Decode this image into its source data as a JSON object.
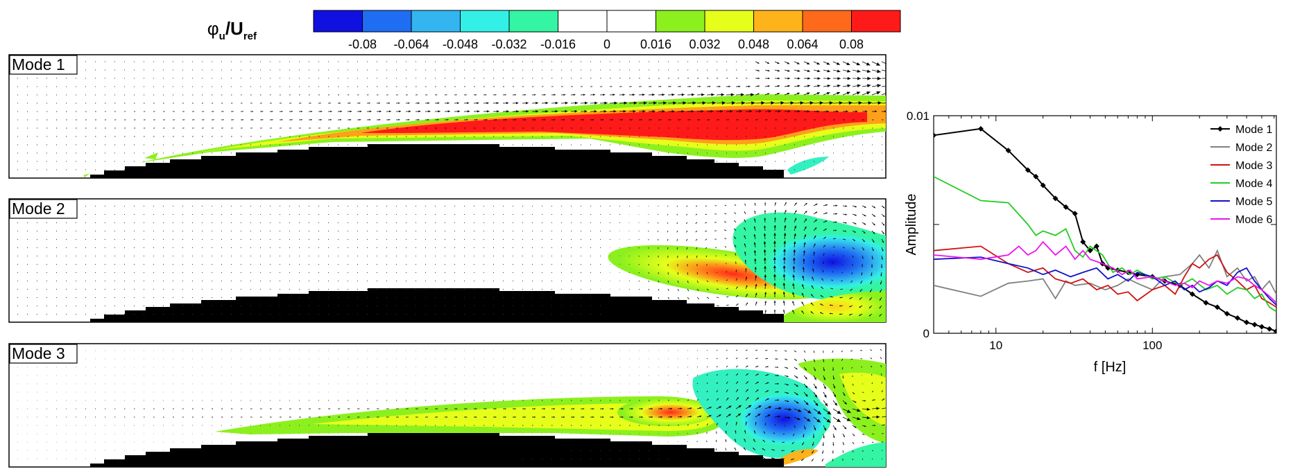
{
  "colorbar": {
    "label_main": "φ",
    "label_sub1": "u",
    "label_mid": "/U",
    "label_sub2": "ref",
    "colors": [
      "#1010e0",
      "#1f6df2",
      "#33b5f0",
      "#33f0e6",
      "#33f5a3",
      "#ffffff",
      "#ffffff",
      "#8cf01f",
      "#e6ff1a",
      "#ffb31a",
      "#ff6a1a",
      "#ff1a1a"
    ],
    "ticks": [
      "-0.08",
      "-0.064",
      "-0.048",
      "-0.032",
      "-0.016",
      "0",
      "0.016",
      "0.032",
      "0.048",
      "0.064",
      "0.08"
    ]
  },
  "modes": [
    {
      "label": "Mode 1"
    },
    {
      "label": "Mode 2"
    },
    {
      "label": "Mode 3"
    }
  ],
  "chart_data": {
    "type": "line",
    "xlabel": "f [Hz]",
    "ylabel": "Amplitude",
    "x_scale": "log",
    "xlim": [
      4,
      620
    ],
    "ylim": [
      0,
      0.01
    ],
    "xticks": [
      {
        "value": 10,
        "label": "10"
      },
      {
        "value": 100,
        "label": "100"
      }
    ],
    "yticks": [
      {
        "value": 0,
        "label": "0"
      },
      {
        "value": 0.01,
        "label": "0.01"
      }
    ],
    "legend_position": "top-right",
    "series": [
      {
        "name": "Mode 1",
        "color": "#000000",
        "marker": "diamond",
        "points": [
          [
            4,
            0.0091
          ],
          [
            8,
            0.0094
          ],
          [
            12,
            0.0084
          ],
          [
            16,
            0.0075
          ],
          [
            18,
            0.0072
          ],
          [
            20,
            0.0068
          ],
          [
            24,
            0.0062
          ],
          [
            28,
            0.0058
          ],
          [
            32,
            0.0055
          ],
          [
            36,
            0.0042
          ],
          [
            40,
            0.0038
          ],
          [
            44,
            0.004
          ],
          [
            48,
            0.0032
          ],
          [
            52,
            0.003
          ],
          [
            60,
            0.0029
          ],
          [
            70,
            0.0028
          ],
          [
            80,
            0.0027
          ],
          [
            100,
            0.0026
          ],
          [
            120,
            0.0024
          ],
          [
            150,
            0.0022
          ],
          [
            180,
            0.0018
          ],
          [
            220,
            0.0014
          ],
          [
            260,
            0.0012
          ],
          [
            300,
            0.0009
          ],
          [
            350,
            0.0007
          ],
          [
            400,
            0.0005
          ],
          [
            450,
            0.0004
          ],
          [
            500,
            0.0003
          ],
          [
            560,
            0.0002
          ],
          [
            620,
            0.0001
          ]
        ]
      },
      {
        "name": "Mode 2",
        "color": "#808080",
        "marker": "none",
        "points": [
          [
            4,
            0.0022
          ],
          [
            8,
            0.0017
          ],
          [
            12,
            0.0023
          ],
          [
            16,
            0.0024
          ],
          [
            20,
            0.0025
          ],
          [
            24,
            0.0016
          ],
          [
            28,
            0.0024
          ],
          [
            32,
            0.0022
          ],
          [
            40,
            0.0023
          ],
          [
            50,
            0.002
          ],
          [
            60,
            0.0022
          ],
          [
            70,
            0.0025
          ],
          [
            80,
            0.0023
          ],
          [
            100,
            0.002
          ],
          [
            120,
            0.0026
          ],
          [
            150,
            0.0027
          ],
          [
            180,
            0.0032
          ],
          [
            200,
            0.0036
          ],
          [
            230,
            0.003
          ],
          [
            260,
            0.0038
          ],
          [
            300,
            0.0026
          ],
          [
            350,
            0.003
          ],
          [
            400,
            0.0024
          ],
          [
            450,
            0.0026
          ],
          [
            500,
            0.002
          ],
          [
            560,
            0.0024
          ],
          [
            620,
            0.0018
          ]
        ]
      },
      {
        "name": "Mode 3",
        "color": "#d01010",
        "marker": "none",
        "points": [
          [
            4,
            0.0038
          ],
          [
            8,
            0.004
          ],
          [
            12,
            0.0032
          ],
          [
            16,
            0.0028
          ],
          [
            20,
            0.003
          ],
          [
            24,
            0.0025
          ],
          [
            30,
            0.0023
          ],
          [
            36,
            0.0025
          ],
          [
            44,
            0.002
          ],
          [
            52,
            0.0022
          ],
          [
            60,
            0.0018
          ],
          [
            70,
            0.0019
          ],
          [
            80,
            0.0015
          ],
          [
            100,
            0.002
          ],
          [
            120,
            0.0022
          ],
          [
            140,
            0.0018
          ],
          [
            160,
            0.0026
          ],
          [
            180,
            0.0032
          ],
          [
            200,
            0.003
          ],
          [
            230,
            0.0034
          ],
          [
            260,
            0.0036
          ],
          [
            300,
            0.0028
          ],
          [
            350,
            0.0024
          ],
          [
            400,
            0.002
          ],
          [
            450,
            0.0022
          ],
          [
            500,
            0.0016
          ],
          [
            560,
            0.0014
          ],
          [
            620,
            0.0012
          ]
        ]
      },
      {
        "name": "Mode 4",
        "color": "#22cc22",
        "marker": "none",
        "points": [
          [
            4,
            0.0072
          ],
          [
            8,
            0.0061
          ],
          [
            12,
            0.006
          ],
          [
            16,
            0.005
          ],
          [
            18,
            0.0045
          ],
          [
            20,
            0.0047
          ],
          [
            24,
            0.0045
          ],
          [
            28,
            0.0048
          ],
          [
            32,
            0.0038
          ],
          [
            36,
            0.0035
          ],
          [
            40,
            0.004
          ],
          [
            48,
            0.0036
          ],
          [
            56,
            0.0028
          ],
          [
            64,
            0.003
          ],
          [
            72,
            0.0027
          ],
          [
            80,
            0.0029
          ],
          [
            100,
            0.0025
          ],
          [
            120,
            0.0026
          ],
          [
            150,
            0.0022
          ],
          [
            180,
            0.0025
          ],
          [
            220,
            0.002
          ],
          [
            260,
            0.0022
          ],
          [
            300,
            0.0018
          ],
          [
            350,
            0.0021
          ],
          [
            400,
            0.002
          ],
          [
            450,
            0.0016
          ],
          [
            500,
            0.0018
          ],
          [
            560,
            0.0012
          ],
          [
            620,
            0.001
          ]
        ]
      },
      {
        "name": "Mode 5",
        "color": "#1010cc",
        "marker": "none",
        "points": [
          [
            4,
            0.0034
          ],
          [
            8,
            0.0035
          ],
          [
            12,
            0.0032
          ],
          [
            16,
            0.003
          ],
          [
            20,
            0.0027
          ],
          [
            24,
            0.0029
          ],
          [
            30,
            0.0026
          ],
          [
            36,
            0.0028
          ],
          [
            44,
            0.003
          ],
          [
            52,
            0.0025
          ],
          [
            60,
            0.0027
          ],
          [
            70,
            0.0024
          ],
          [
            80,
            0.0028
          ],
          [
            100,
            0.0026
          ],
          [
            120,
            0.0022
          ],
          [
            140,
            0.0024
          ],
          [
            160,
            0.002
          ],
          [
            180,
            0.0022
          ],
          [
            200,
            0.0019
          ],
          [
            230,
            0.0021
          ],
          [
            260,
            0.0024
          ],
          [
            300,
            0.0022
          ],
          [
            350,
            0.0028
          ],
          [
            400,
            0.003
          ],
          [
            450,
            0.0024
          ],
          [
            500,
            0.002
          ],
          [
            560,
            0.0016
          ],
          [
            620,
            0.0013
          ]
        ]
      },
      {
        "name": "Mode 6",
        "color": "#ee10ee",
        "marker": "none",
        "points": [
          [
            4,
            0.0036
          ],
          [
            8,
            0.0034
          ],
          [
            12,
            0.0036
          ],
          [
            14,
            0.004
          ],
          [
            16,
            0.0036
          ],
          [
            18,
            0.0038
          ],
          [
            20,
            0.0042
          ],
          [
            24,
            0.0036
          ],
          [
            28,
            0.004
          ],
          [
            32,
            0.0034
          ],
          [
            36,
            0.0038
          ],
          [
            40,
            0.0034
          ],
          [
            48,
            0.0032
          ],
          [
            56,
            0.003
          ],
          [
            64,
            0.0027
          ],
          [
            72,
            0.0029
          ],
          [
            80,
            0.0025
          ],
          [
            100,
            0.0026
          ],
          [
            120,
            0.0024
          ],
          [
            140,
            0.0022
          ],
          [
            160,
            0.0023
          ],
          [
            180,
            0.0021
          ],
          [
            200,
            0.0024
          ],
          [
            230,
            0.0022
          ],
          [
            260,
            0.0024
          ],
          [
            300,
            0.0023
          ],
          [
            350,
            0.0026
          ],
          [
            400,
            0.0025
          ],
          [
            450,
            0.0022
          ],
          [
            500,
            0.002
          ],
          [
            560,
            0.0017
          ],
          [
            620,
            0.0014
          ]
        ]
      }
    ]
  }
}
